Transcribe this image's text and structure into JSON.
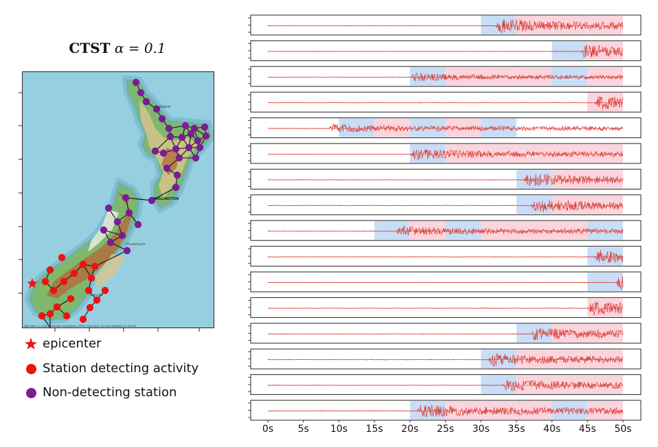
{
  "figure": {
    "title_text": "CTST",
    "title_param": "α = 0.1"
  },
  "map": {
    "labels": {
      "auckland": "Auckland",
      "wellington": "WELLINGTON",
      "christchurch": "Christchurch",
      "dunedin": "Dunedin"
    },
    "attribution": "Map data: (c) OpenStreetMap contributors, SRTM | Map style: (c) OpenTopoMap (CC-BY-SA)",
    "colors": {
      "sea": "#96cfe0",
      "detecting": "#ee1111",
      "non_detecting": "#7b1c95",
      "edge": "#111111"
    },
    "non_detecting_count": 34,
    "detecting_count": 20
  },
  "legend": {
    "items": [
      {
        "label": "epicenter",
        "icon": "red-star-icon",
        "color": "#ee1111"
      },
      {
        "label": "Station detecting activity",
        "icon": "red-dot-icon",
        "color": "#ee1111"
      },
      {
        "label": "Non-detecting station",
        "icon": "purple-dot-icon",
        "color": "#7b1c95"
      }
    ]
  },
  "chart_data": {
    "type": "line",
    "x_ticks": [
      "0s",
      "5s",
      "10s",
      "15s",
      "20s",
      "25s",
      "30s",
      "35s",
      "40s",
      "45s",
      "50s"
    ],
    "xlim": [
      0,
      50
    ],
    "colors": {
      "signal": "#d9372e",
      "window_blue": "#c9ddf7",
      "window_pink": "#fad5dd"
    },
    "traces": [
      {
        "onset": 32,
        "amp": 0.85,
        "windows": [
          [
            30,
            35,
            "blue"
          ],
          [
            35,
            40,
            "pink"
          ],
          [
            40,
            45,
            "pink"
          ],
          [
            45,
            50,
            "pink"
          ]
        ]
      },
      {
        "onset": 44,
        "amp": 0.8,
        "windows": [
          [
            40,
            45,
            "blue"
          ],
          [
            45,
            50,
            "pink"
          ]
        ]
      },
      {
        "onset": 20,
        "amp": 0.5,
        "windows": [
          [
            20,
            25,
            "blue"
          ],
          [
            25,
            30,
            "pink"
          ],
          [
            30,
            35,
            "pink"
          ],
          [
            35,
            40,
            "pink"
          ],
          [
            40,
            45,
            "blue"
          ],
          [
            45,
            50,
            "pink"
          ]
        ]
      },
      {
        "onset": 46,
        "amp": 0.85,
        "windows": [
          [
            45,
            50,
            "pink"
          ]
        ]
      },
      {
        "onset": 8.5,
        "amp": 0.55,
        "windows": [
          [
            10,
            15,
            "blue"
          ],
          [
            15,
            20,
            "pink"
          ],
          [
            20,
            25,
            "blue"
          ],
          [
            25,
            30,
            "pink"
          ],
          [
            30,
            35,
            "blue"
          ]
        ]
      },
      {
        "onset": 20,
        "amp": 0.65,
        "windows": [
          [
            20,
            25,
            "blue"
          ],
          [
            25,
            30,
            "pink"
          ],
          [
            30,
            35,
            "pink"
          ],
          [
            35,
            40,
            "pink"
          ],
          [
            40,
            45,
            "pink"
          ],
          [
            45,
            50,
            "pink"
          ]
        ]
      },
      {
        "onset": 36,
        "amp": 0.8,
        "windows": [
          [
            35,
            40,
            "blue"
          ],
          [
            40,
            45,
            "pink"
          ],
          [
            45,
            50,
            "pink"
          ]
        ]
      },
      {
        "onset": 37,
        "amp": 0.8,
        "windows": [
          [
            35,
            40,
            "blue"
          ],
          [
            40,
            45,
            "pink"
          ],
          [
            45,
            50,
            "pink"
          ]
        ]
      },
      {
        "onset": 18,
        "amp": 0.6,
        "windows": [
          [
            15,
            20,
            "blue"
          ],
          [
            20,
            25,
            "pink"
          ],
          [
            25,
            30,
            "blue"
          ],
          [
            30,
            35,
            "pink"
          ],
          [
            35,
            40,
            "pink"
          ],
          [
            40,
            45,
            "pink"
          ],
          [
            45,
            50,
            "blue"
          ]
        ]
      },
      {
        "onset": 46,
        "amp": 0.8,
        "windows": [
          [
            45,
            50,
            "blue"
          ]
        ]
      },
      {
        "onset": 49,
        "amp": 0.9,
        "windows": [
          [
            45,
            50,
            "blue"
          ]
        ]
      },
      {
        "onset": 45,
        "amp": 0.85,
        "windows": [
          [
            45,
            50,
            "pink"
          ]
        ]
      },
      {
        "onset": 37,
        "amp": 0.8,
        "windows": [
          [
            35,
            40,
            "blue"
          ],
          [
            40,
            45,
            "pink"
          ],
          [
            45,
            50,
            "pink"
          ]
        ]
      },
      {
        "onset": 31,
        "amp": 0.75,
        "windows": [
          [
            30,
            35,
            "blue"
          ],
          [
            35,
            40,
            "pink"
          ],
          [
            40,
            45,
            "pink"
          ],
          [
            45,
            50,
            "pink"
          ]
        ]
      },
      {
        "onset": 33,
        "amp": 0.75,
        "windows": [
          [
            30,
            35,
            "blue"
          ],
          [
            35,
            40,
            "pink"
          ],
          [
            40,
            45,
            "pink"
          ],
          [
            45,
            50,
            "pink"
          ]
        ]
      },
      {
        "onset": 21,
        "amp": 0.8,
        "windows": [
          [
            20,
            25,
            "blue"
          ],
          [
            25,
            30,
            "pink"
          ],
          [
            30,
            35,
            "pink"
          ],
          [
            35,
            40,
            "pink"
          ],
          [
            40,
            45,
            "blue"
          ],
          [
            45,
            50,
            "pink"
          ]
        ]
      }
    ]
  }
}
